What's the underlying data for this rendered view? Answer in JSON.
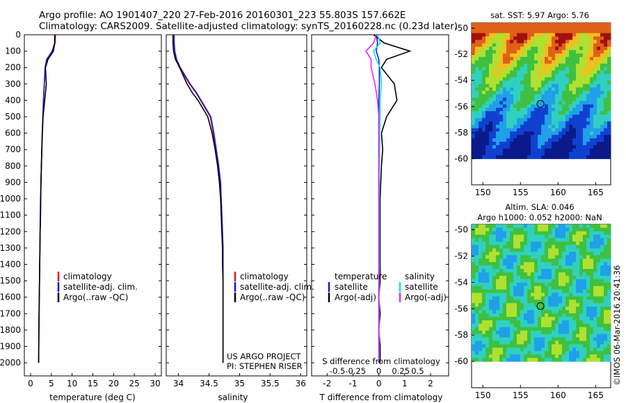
{
  "header": {
    "line1": "Argo profile: AO 1901407_220 27-Feb-2016 20160301_223 55.803S 157.662E",
    "line2": "Climatology: CARS2009. Satellite-adjusted climatology: synTS_20160228.nc (0.23d later)"
  },
  "panel_titles": {
    "sst": "sat. SST: 5.97 Argo: 5.76",
    "sla_line1": "Altim. SLA: 0.046",
    "sla_line2": "Argo h1000: 0.052 h2000: NaN"
  },
  "side_label": "©IMOS 06-Mar-2016 20:41:36",
  "project": {
    "line1": "US ARGO PROJECT",
    "line2": "PI: STEPHEN RISER"
  },
  "legends": {
    "temp": [
      "climatology",
      "satellite-adj. clim.",
      "Argo(..raw -QC)"
    ],
    "sal": [
      "climatology",
      "satellite-adj. clim.",
      "Argo(..raw -QC)"
    ],
    "diff_head_t": "temperature",
    "diff_head_s": "salinity",
    "diff_t": [
      "satellite",
      "Argo(-adj)"
    ],
    "diff_s": [
      "satellite",
      "Argo(-adj)"
    ]
  },
  "colors": {
    "climatology": "#e8141c",
    "satellite": "#1515e0",
    "argo": "#000000",
    "s_satellite": "#00e5e5",
    "s_argo": "#ee22ee"
  },
  "chart_data": [
    {
      "type": "line",
      "xlabel": "temperature (deg C)",
      "ylabel": "",
      "xlim": [
        -1.5,
        31.5
      ],
      "ylim": [
        2080,
        0
      ],
      "xticks": [
        0,
        5,
        10,
        15,
        20,
        25,
        30
      ],
      "yticks": [
        0,
        100,
        200,
        300,
        400,
        500,
        600,
        700,
        800,
        900,
        1000,
        1100,
        1200,
        1300,
        1400,
        1500,
        1600,
        1700,
        1800,
        1900,
        2000
      ],
      "series": [
        {
          "name": "climatology",
          "x": [
            6.0,
            5.9,
            5.3,
            3.9,
            3.5,
            3.3,
            3.1,
            2.95,
            2.8,
            2.7,
            2.6,
            2.5,
            2.45,
            2.4,
            2.3,
            2.25,
            2.2,
            2.15,
            2.1,
            2.05,
            2.0,
            1.95
          ],
          "y": [
            0,
            50,
            100,
            150,
            200,
            300,
            400,
            500,
            600,
            700,
            800,
            900,
            1000,
            1100,
            1200,
            1300,
            1400,
            1500,
            1600,
            1700,
            1800,
            2000
          ]
        },
        {
          "name": "satellite-adj. clim.",
          "x": [
            5.9,
            5.8,
            5.2,
            3.9,
            3.5,
            3.3,
            3.1,
            2.95,
            2.8,
            2.7,
            2.6,
            2.5,
            2.45,
            2.4,
            2.3,
            2.25,
            2.2,
            2.15,
            2.1,
            2.05,
            2.0,
            1.95
          ],
          "y": [
            0,
            50,
            100,
            150,
            200,
            300,
            400,
            500,
            600,
            700,
            800,
            900,
            1000,
            1100,
            1200,
            1300,
            1400,
            1500,
            1600,
            1700,
            1800,
            2000
          ]
        },
        {
          "name": "Argo(..raw -QC)",
          "x": [
            5.8,
            5.8,
            5.5,
            4.2,
            3.6,
            3.8,
            3.4,
            3.0,
            2.85,
            2.7,
            2.6,
            2.5,
            2.4,
            2.35,
            2.3,
            2.25,
            2.2,
            2.15,
            2.1,
            2.05,
            2.0,
            1.95
          ],
          "y": [
            0,
            50,
            100,
            150,
            200,
            300,
            400,
            500,
            600,
            700,
            800,
            900,
            1000,
            1100,
            1200,
            1300,
            1400,
            1500,
            1600,
            1700,
            1800,
            2000
          ]
        }
      ]
    },
    {
      "type": "line",
      "xlabel": "salinity",
      "ylabel": "",
      "xlim": [
        33.8,
        36.1
      ],
      "ylim": [
        2080,
        0
      ],
      "xticks": [
        34,
        34.5,
        35,
        35.5,
        36
      ],
      "series": [
        {
          "name": "climatology",
          "x": [
            33.92,
            33.93,
            33.94,
            33.96,
            34.02,
            34.1,
            34.18,
            34.28,
            34.36,
            34.44,
            34.52,
            34.57,
            34.61,
            34.65,
            34.68,
            34.7,
            34.71,
            34.72,
            34.73,
            34.73,
            34.73,
            34.73,
            34.73,
            34.73,
            34.73,
            34.73
          ],
          "y": [
            0,
            50,
            100,
            150,
            200,
            250,
            300,
            350,
            400,
            450,
            500,
            600,
            700,
            800,
            900,
            1000,
            1100,
            1200,
            1300,
            1400,
            1500,
            1600,
            1700,
            1800,
            1900,
            2000
          ]
        },
        {
          "name": "satellite-adj. clim.",
          "x": [
            33.93,
            33.93,
            33.94,
            33.97,
            34.03,
            34.11,
            34.19,
            34.29,
            34.37,
            34.45,
            34.53,
            34.58,
            34.62,
            34.66,
            34.69,
            34.7,
            34.71,
            34.72,
            34.73,
            34.73,
            34.73,
            34.73,
            34.73,
            34.73,
            34.73,
            34.73
          ],
          "y": [
            0,
            50,
            100,
            150,
            200,
            250,
            300,
            350,
            400,
            450,
            500,
            600,
            700,
            800,
            900,
            1000,
            1100,
            1200,
            1300,
            1400,
            1500,
            1600,
            1700,
            1800,
            1900,
            2000
          ]
        },
        {
          "name": "Argo(..raw -QC)",
          "x": [
            33.91,
            33.91,
            33.92,
            33.95,
            34.02,
            34.08,
            34.14,
            34.22,
            34.32,
            34.4,
            34.48,
            34.55,
            34.6,
            34.64,
            34.67,
            34.69,
            34.7,
            34.71,
            34.72,
            34.72,
            34.73,
            34.73,
            34.73,
            34.73,
            34.73,
            34.73
          ],
          "y": [
            0,
            50,
            100,
            150,
            200,
            250,
            300,
            350,
            400,
            450,
            500,
            600,
            700,
            800,
            900,
            1000,
            1100,
            1200,
            1300,
            1400,
            1500,
            1600,
            1700,
            1800,
            1900,
            2000
          ]
        }
      ]
    },
    {
      "type": "line",
      "xlabel": "T difference from climatology",
      "xlabel2": "S difference from climatology",
      "xlim": [
        -2.6,
        2.7
      ],
      "ylim": [
        2080,
        0
      ],
      "xticks": [
        -2,
        -1,
        0,
        1,
        2
      ],
      "xticks2": [
        "-0.5",
        "-0.25",
        "0",
        "0.25",
        "0.5"
      ],
      "series": [
        {
          "name": "temperature satellite",
          "x": [
            -0.1,
            -0.05,
            -0.1,
            0.0,
            0.02,
            0.02,
            0.0,
            0.0,
            0.0,
            0.0,
            0.0,
            0.0,
            0.0,
            0.0,
            0.0,
            0.0,
            0.0,
            0.0,
            0.0,
            0.0
          ],
          "y": [
            0,
            50,
            100,
            150,
            200,
            300,
            400,
            500,
            600,
            700,
            800,
            1000,
            1200,
            1400,
            1500,
            1600,
            1700,
            1800,
            1900,
            2000
          ]
        },
        {
          "name": "temperature Argo(-adj)",
          "x": [
            -0.2,
            0.2,
            1.2,
            0.3,
            0.1,
            0.6,
            0.7,
            0.3,
            0.1,
            0.15,
            0.1,
            0.05,
            0.05,
            0.05,
            0.05,
            0.0,
            0.05,
            0.0,
            0.05,
            0.05
          ],
          "y": [
            0,
            50,
            100,
            150,
            200,
            300,
            400,
            500,
            600,
            700,
            800,
            1000,
            1200,
            1400,
            1500,
            1600,
            1700,
            1800,
            1900,
            2000
          ]
        },
        {
          "name": "salinity satellite",
          "x": [
            -0.05,
            0.05,
            -0.2,
            -0.1,
            0.05,
            0.1,
            0.05,
            0.05,
            0.03,
            0.03,
            0.02,
            0.02,
            0.02,
            0.02,
            0.01,
            0.01,
            0.01,
            0.01,
            0.01,
            0.01
          ],
          "y": [
            0,
            50,
            100,
            150,
            200,
            300,
            400,
            500,
            600,
            700,
            800,
            1000,
            1200,
            1400,
            1500,
            1600,
            1700,
            1800,
            1900,
            2000
          ]
        },
        {
          "name": "salinity Argo(-adj)",
          "x": [
            -0.1,
            -0.2,
            -0.5,
            -0.3,
            -0.3,
            -0.15,
            -0.05,
            0.0,
            0.0,
            0.0,
            0.0,
            0.0,
            0.0,
            0.0,
            0.0,
            0.0,
            0.0,
            0.0,
            0.0,
            0.0
          ],
          "y": [
            0,
            50,
            100,
            150,
            200,
            300,
            400,
            500,
            600,
            700,
            800,
            1000,
            1200,
            1400,
            1500,
            1600,
            1700,
            1800,
            1900,
            2000
          ]
        }
      ]
    },
    {
      "type": "heatmap",
      "title": "sat. SST: 5.97 Argo: 5.76",
      "xlim": [
        148.5,
        167
      ],
      "ylim": [
        -62,
        -49.6
      ],
      "xticks": [
        150,
        155,
        160,
        165
      ],
      "yticks": [
        -50,
        -52,
        -54,
        -56,
        -58,
        -60
      ],
      "marker": {
        "x": 157.66,
        "y": -55.8
      }
    },
    {
      "type": "heatmap",
      "title": "Altim. SLA: 0.046",
      "xlim": [
        148.5,
        167
      ],
      "ylim": [
        -62,
        -49.6
      ],
      "xticks": [
        150,
        155,
        160,
        165
      ],
      "yticks": [
        -50,
        -52,
        -54,
        -56,
        -58,
        -60
      ],
      "marker": {
        "x": 157.66,
        "y": -55.8
      }
    }
  ]
}
